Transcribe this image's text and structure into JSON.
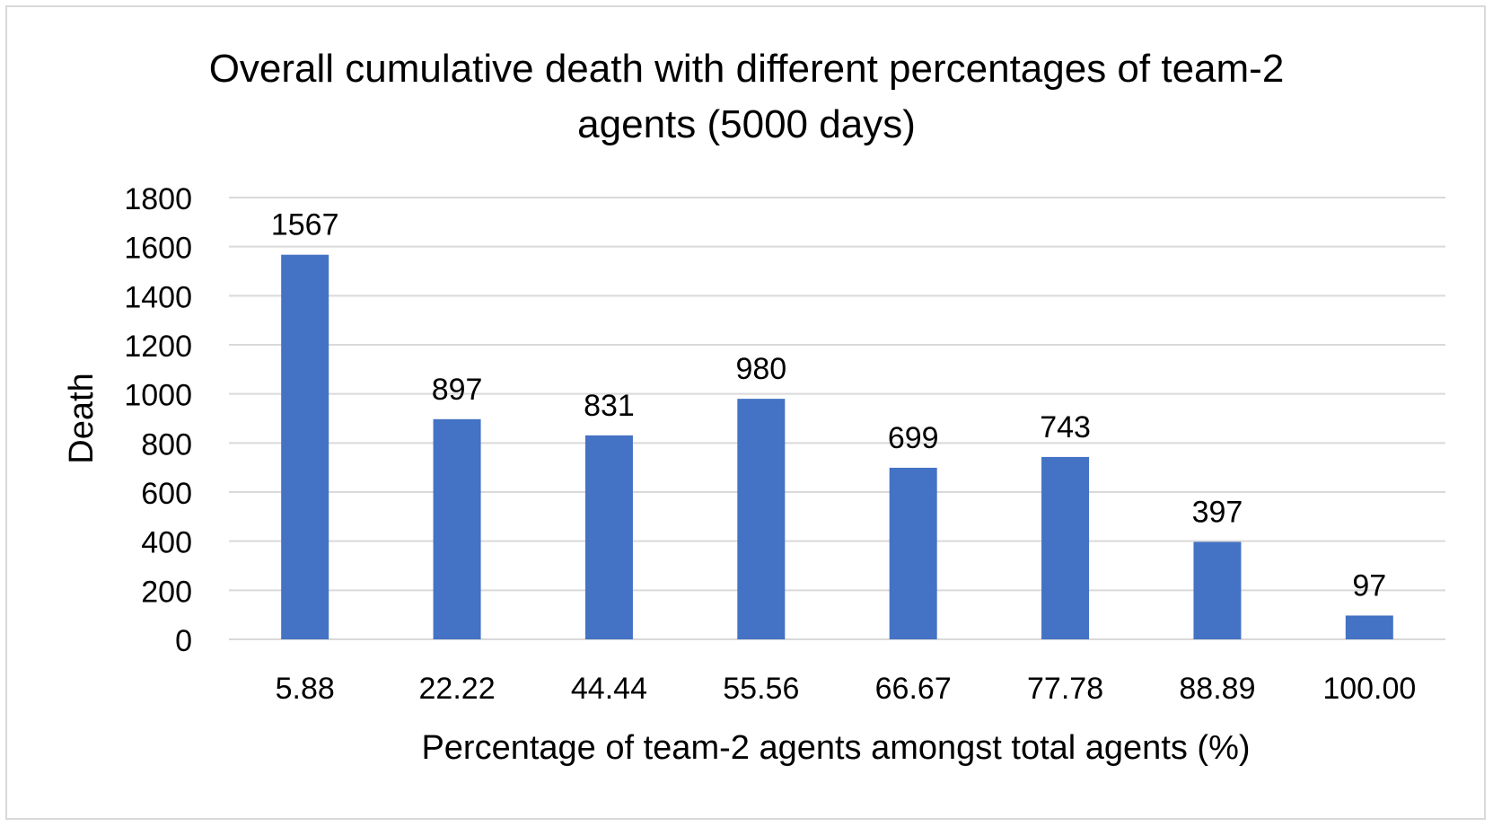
{
  "chart_data": {
    "type": "bar",
    "title_lines": [
      "Overall cumulative death with different percentages of team-2",
      "agents (5000 days)"
    ],
    "xlabel": "Percentage of team-2 agents amongst total agents (%)",
    "ylabel": "Death",
    "categories": [
      "5.88",
      "22.22",
      "44.44",
      "55.56",
      "66.67",
      "77.78",
      "88.89",
      "100.00"
    ],
    "values": [
      1567,
      897,
      831,
      980,
      699,
      743,
      397,
      97
    ],
    "data_labels": [
      "1567",
      "897",
      "831",
      "980",
      "699",
      "743",
      "397",
      "97"
    ],
    "ylim": [
      0,
      1800
    ],
    "yticks": [
      0,
      200,
      400,
      600,
      800,
      1000,
      1200,
      1400,
      1600,
      1800
    ],
    "ytick_labels": [
      "0",
      "200",
      "400",
      "600",
      "800",
      "1000",
      "1200",
      "1400",
      "1600",
      "1800"
    ],
    "grid": true,
    "legend": "none",
    "bar_color": "#4472c4",
    "grid_color": "#d9d9d9"
  }
}
